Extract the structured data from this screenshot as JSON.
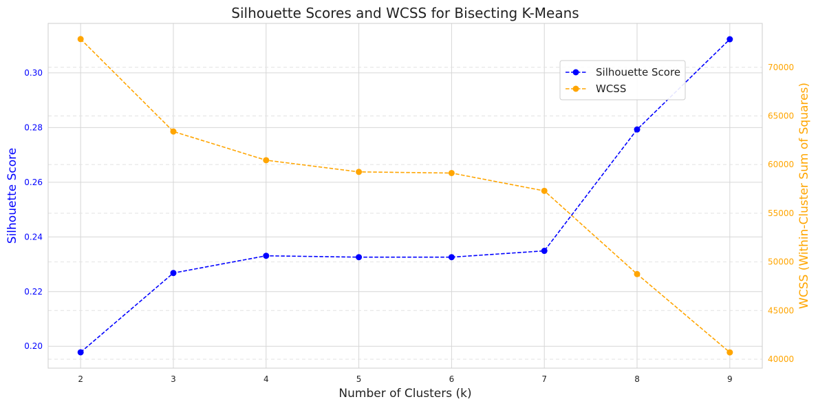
{
  "chart_data": {
    "type": "line",
    "title": "Silhouette Scores and WCSS for Bisecting K-Means",
    "xlabel": "Number of Clusters (k)",
    "x": [
      2,
      3,
      4,
      5,
      6,
      7,
      8,
      9
    ],
    "x_ticks": [
      "2",
      "3",
      "4",
      "5",
      "6",
      "7",
      "8",
      "9"
    ],
    "xlim": [
      1.65,
      9.35
    ],
    "grid": true,
    "legend_placement": "upper right",
    "series": [
      {
        "name": "Silhouette Score",
        "axis": "left",
        "color": "#0000ff",
        "linestyle": "dashed",
        "marker": "circle",
        "values": [
          0.1978,
          0.2268,
          0.2331,
          0.2326,
          0.2326,
          0.2349,
          0.2793,
          0.3123
        ]
      },
      {
        "name": "WCSS",
        "axis": "right",
        "color": "#ffa500",
        "linestyle": "dashed",
        "marker": "circle",
        "values": [
          72900,
          63400,
          60450,
          59250,
          59130,
          57300,
          48750,
          40700
        ]
      }
    ],
    "y_left": {
      "label": "Silhouette Score",
      "color": "#0000ff",
      "ticks": [
        0.2,
        0.22,
        0.24,
        0.26,
        0.28,
        0.3
      ],
      "tick_labels": [
        "0.20",
        "0.22",
        "0.24",
        "0.26",
        "0.28",
        "0.30"
      ],
      "ylim": [
        0.192,
        0.3181
      ]
    },
    "y_right": {
      "label": "WCSS (Within-Cluster Sum of Squares)",
      "color": "#ffa500",
      "ticks": [
        40000,
        45000,
        50000,
        55000,
        60000,
        65000,
        70000
      ],
      "tick_labels": [
        "40000",
        "45000",
        "50000",
        "55000",
        "60000",
        "65000",
        "70000"
      ],
      "ylim": [
        39080,
        74510
      ]
    }
  }
}
